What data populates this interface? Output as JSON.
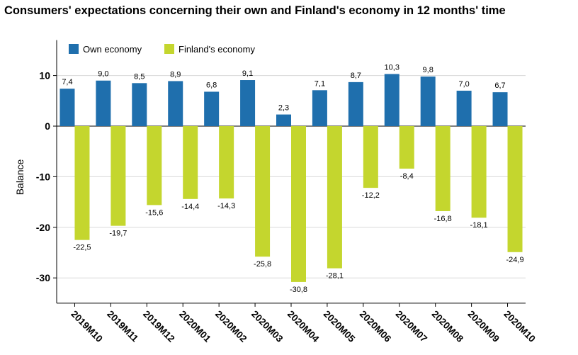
{
  "chart_data": {
    "type": "bar",
    "title": "Consumers' expectations concerning their own and Finland's economy in 12 months' time",
    "xlabel": "",
    "ylabel": "Balance",
    "ylim": [
      -35,
      17
    ],
    "yticks": [
      10,
      0,
      -10,
      -20,
      -30
    ],
    "grid": true,
    "legend_position": "top-left",
    "categories": [
      "2019M10",
      "2019M11",
      "2019M12",
      "2020M01",
      "2020M02",
      "2020M03",
      "2020M04",
      "2020M05",
      "2020M06",
      "2020M07",
      "2020M08",
      "2020M09",
      "2020M10"
    ],
    "series": [
      {
        "name": "Own economy",
        "color": "#1f6fad",
        "values": [
          7.4,
          9.0,
          8.5,
          8.9,
          6.8,
          9.1,
          2.3,
          7.1,
          8.7,
          10.3,
          9.8,
          7.0,
          6.7
        ],
        "labels": [
          "7,4",
          "9,0",
          "8,5",
          "8,9",
          "6,8",
          "9,1",
          "2,3",
          "7,1",
          "8,7",
          "10,3",
          "9,8",
          "7,0",
          "6,7"
        ]
      },
      {
        "name": "Finland's economy",
        "color": "#c4d62e",
        "values": [
          -22.5,
          -19.7,
          -15.6,
          -14.4,
          -14.3,
          -25.8,
          -30.8,
          -28.1,
          -12.2,
          -8.4,
          -16.8,
          -18.1,
          -24.9
        ],
        "labels": [
          "-22,5",
          "-19,7",
          "-15,6",
          "-14,4",
          "-14,3",
          "-25,8",
          "-30,8",
          "-28,1",
          "-12,2",
          "-8,4",
          "-16,8",
          "-18,1",
          "-24,9"
        ]
      }
    ]
  }
}
